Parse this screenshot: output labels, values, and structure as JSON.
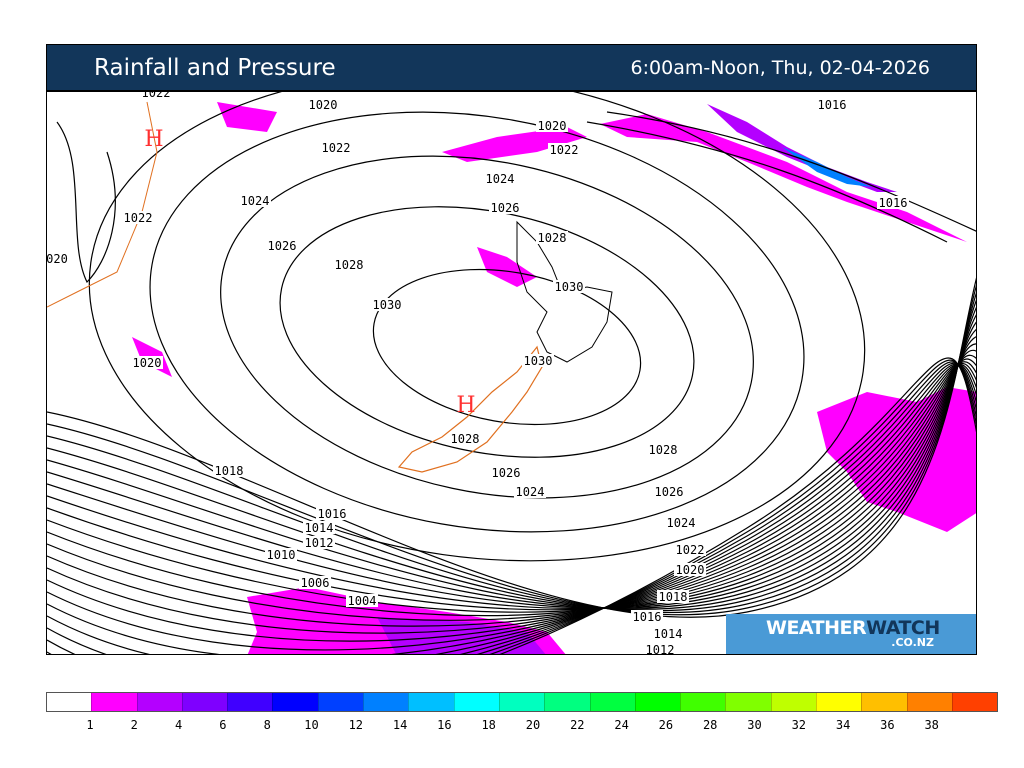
{
  "header": {
    "title": "Rainfall and Pressure",
    "period": "6:00am-Noon, Thu, 02-04-2026"
  },
  "logo": {
    "text_a": "WEATHER",
    "text_b": "WATCH",
    "domain": ".CO.NZ"
  },
  "isobar_labels": [
    "1022",
    "1020",
    "1022",
    "1020",
    "1022",
    "1016",
    "1016",
    "1024",
    "1026",
    "1028",
    "1024",
    "1022",
    "1026",
    "1028",
    "1030",
    "1030",
    "020",
    "1020",
    "1030",
    "1028",
    "1028",
    "1018",
    "1026",
    "1026",
    "1024",
    "1024",
    "1016",
    "1014",
    "1012",
    "1010",
    "1022",
    "1020",
    "1006",
    "1018",
    "1004",
    "1016",
    "1014",
    "1012"
  ],
  "high_markers": [
    "H",
    "H"
  ],
  "legend": {
    "colors": [
      "#ffffff",
      "#ff00ff",
      "#b400ff",
      "#7f00ff",
      "#4000ff",
      "#0000ff",
      "#0040ff",
      "#0080ff",
      "#00bfff",
      "#00ffff",
      "#00ffbf",
      "#00ff80",
      "#00ff40",
      "#00ff00",
      "#40ff00",
      "#80ff00",
      "#bfff00",
      "#ffff00",
      "#ffbf00",
      "#ff8000",
      "#ff4000"
    ],
    "ticks": [
      "1",
      "2",
      "4",
      "6",
      "8",
      "10",
      "12",
      "14",
      "16",
      "18",
      "20",
      "22",
      "24",
      "26",
      "28",
      "30",
      "32",
      "34",
      "36",
      "38"
    ]
  },
  "colors": {
    "header_bg": "#12365a",
    "rain_light": "#ff00ff",
    "rain_mid": "#b400ff",
    "coast": "#e07020",
    "high_marker": "#ff3030"
  }
}
